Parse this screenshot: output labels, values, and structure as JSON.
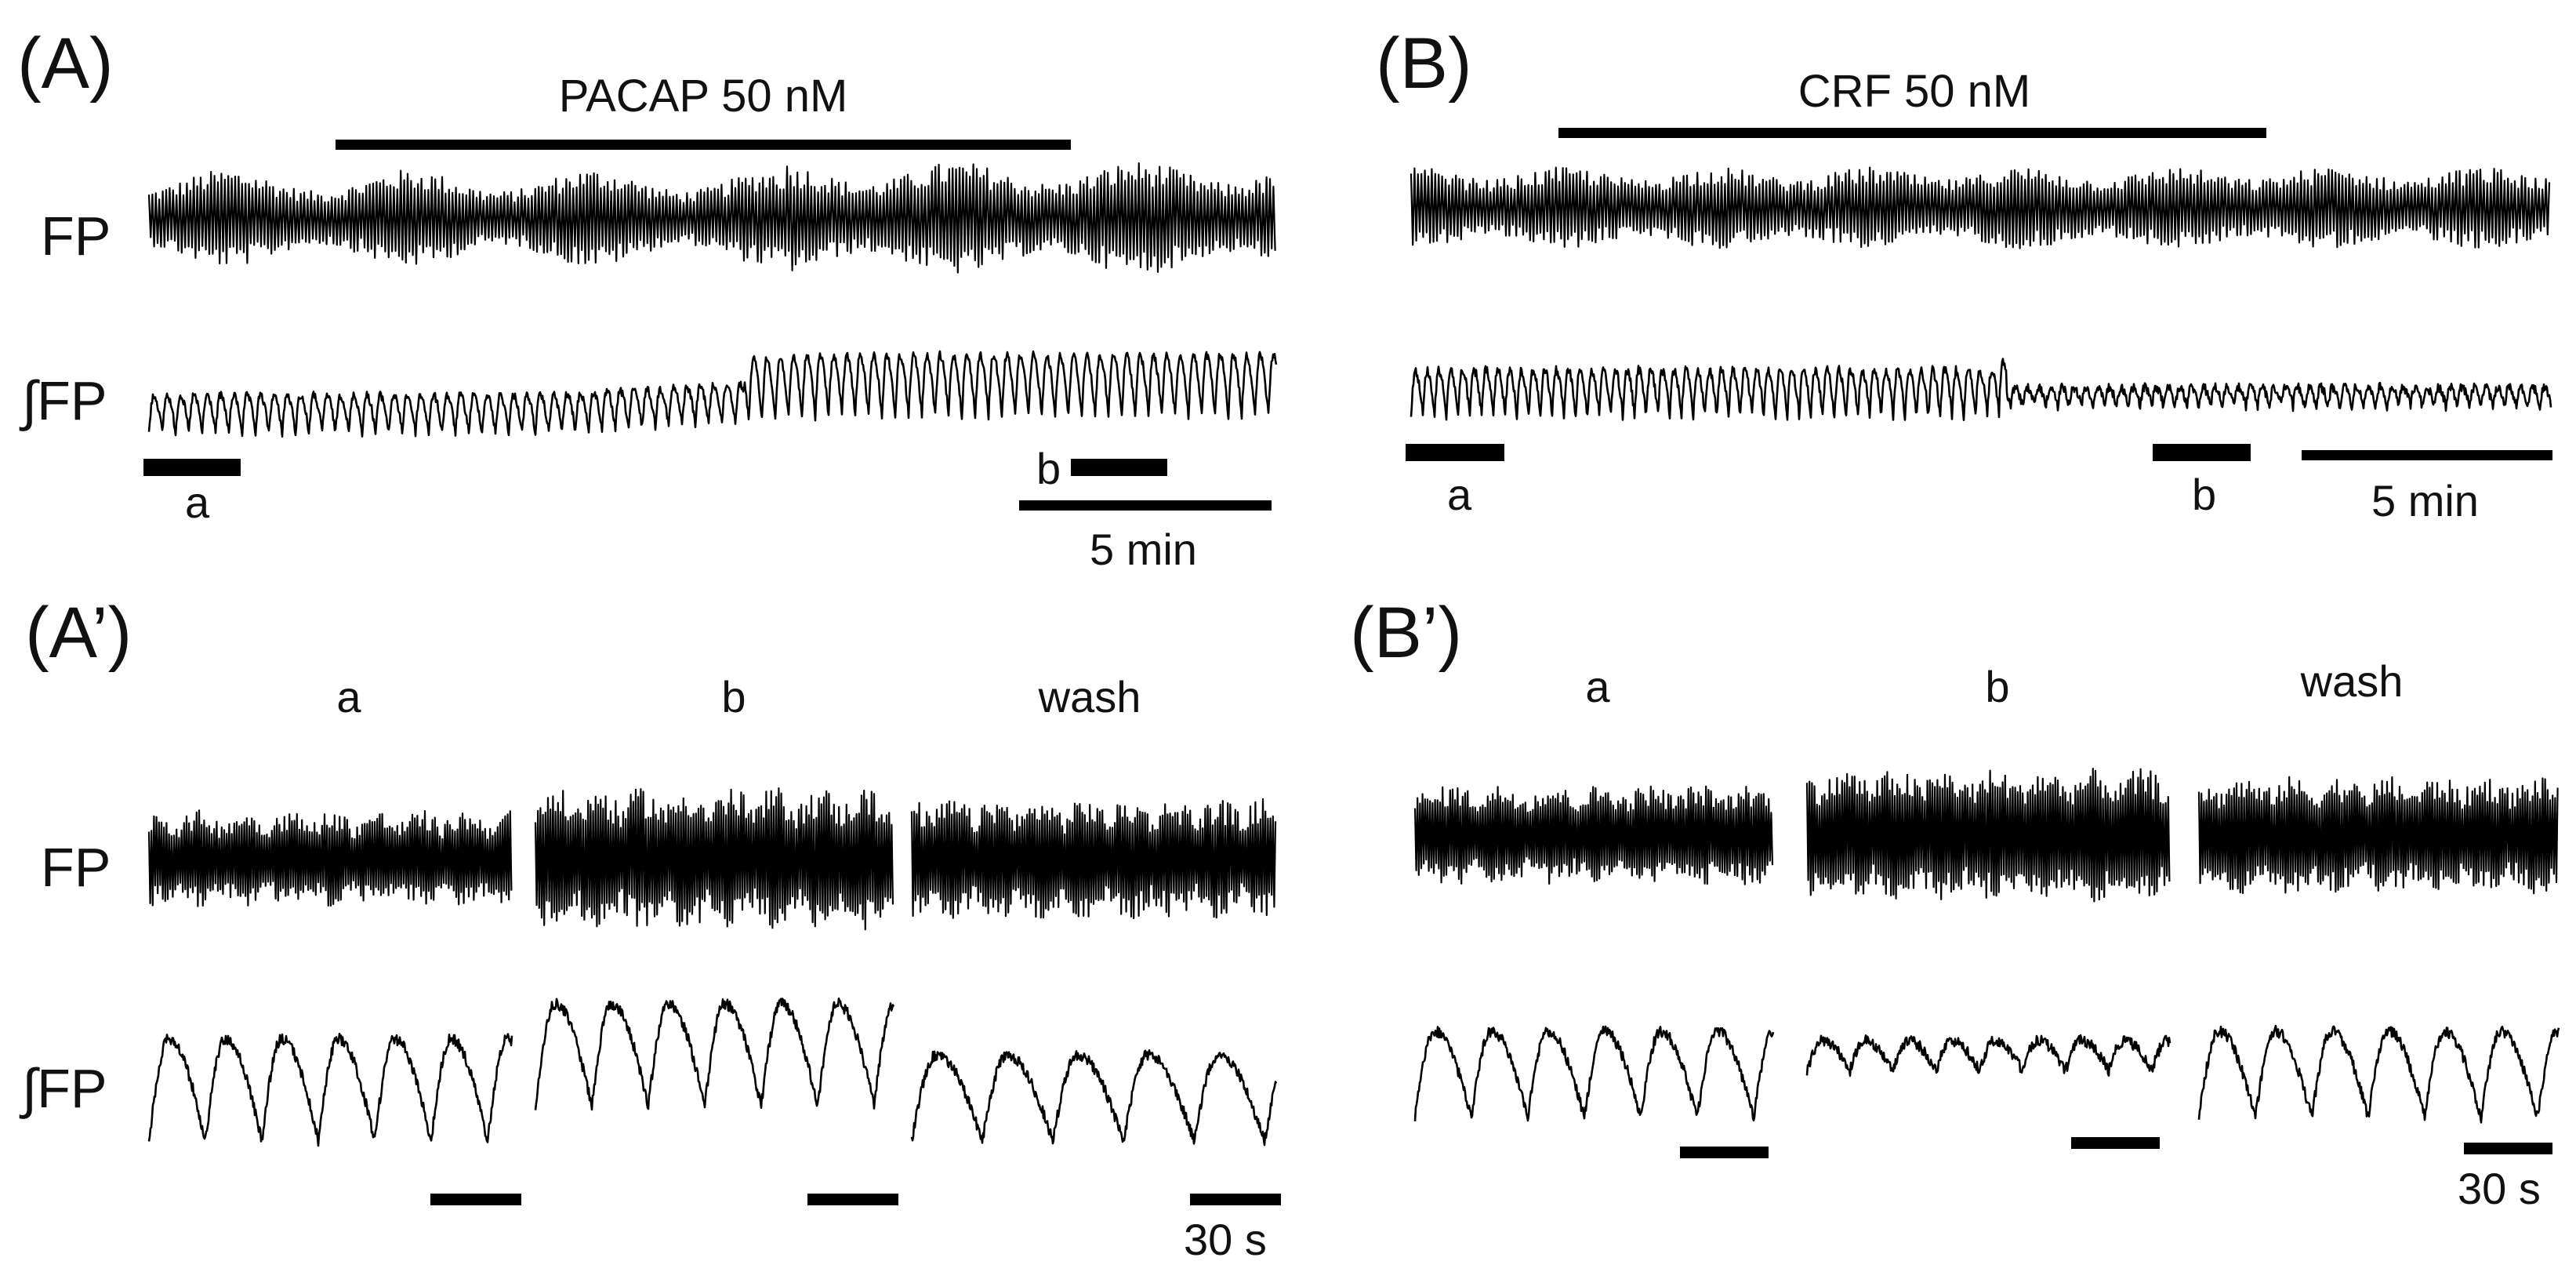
{
  "panel_a": {
    "label": "(A)",
    "drug": "PACAP 50 nM",
    "row_fp": "FP",
    "row_ifp": "∫FP",
    "seg_a": "a",
    "seg_b": "b",
    "scale": "5 min"
  },
  "panel_b": {
    "label": "(B)",
    "drug": "CRF 50 nM",
    "seg_a": "a",
    "seg_b": "b",
    "scale": "5 min"
  },
  "panel_a2": {
    "label": "(A’)",
    "row_fp": "FP",
    "row_ifp": "∫FP",
    "sub_a": "a",
    "sub_b": "b",
    "sub_wash": "wash",
    "scale": "30 s"
  },
  "panel_b2": {
    "label": "(B’)",
    "sub_a": "a",
    "sub_b": "b",
    "sub_wash": "wash",
    "scale": "30 s"
  },
  "colors": {
    "trace": "#000000",
    "background": "#ffffff"
  }
}
